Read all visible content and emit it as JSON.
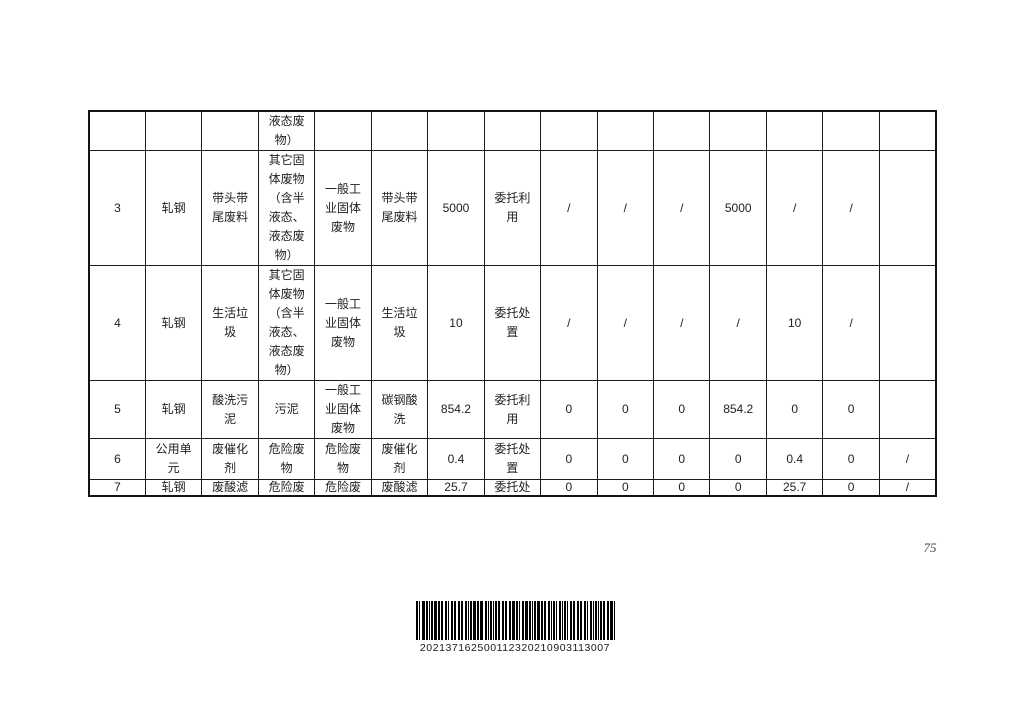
{
  "page": {
    "number": "75"
  },
  "table": {
    "columns_count": 15,
    "rows": [
      [
        "",
        "",
        "",
        "液态废\n物）",
        "",
        "",
        "",
        "",
        "",
        "",
        "",
        "",
        "",
        "",
        ""
      ],
      [
        "3",
        "轧钢",
        "带头带\n尾废料",
        "其它固\n体废物\n（含半\n液态、\n液态废\n物）",
        "一般工\n业固体\n废物",
        "带头带\n尾废料",
        "5000",
        "委托利\n用",
        "/",
        "/",
        "/",
        "5000",
        "/",
        "/",
        ""
      ],
      [
        "4",
        "轧钢",
        "生活垃\n圾",
        "其它固\n体废物\n（含半\n液态、\n液态废\n物）",
        "一般工\n业固体\n废物",
        "生活垃\n圾",
        "10",
        "委托处\n置",
        "/",
        "/",
        "/",
        "/",
        "10",
        "/",
        ""
      ],
      [
        "5",
        "轧钢",
        "酸洗污\n泥",
        "污泥",
        "一般工\n业固体\n废物",
        "碳钢酸\n洗",
        "854.2",
        "委托利\n用",
        "0",
        "0",
        "0",
        "854.2",
        "0",
        "0",
        ""
      ],
      [
        "6",
        "公用单\n元",
        "废催化\n剂",
        "危险废\n物",
        "危险废\n物",
        "废催化\n剂",
        "0.4",
        "委托处\n置",
        "0",
        "0",
        "0",
        "0",
        "0.4",
        "0",
        "/"
      ],
      [
        "7",
        "轧钢",
        "废酸滤",
        "危险废",
        "危险废",
        "废酸滤",
        "25.7",
        "委托处",
        "0",
        "0",
        "0",
        "0",
        "25.7",
        "0",
        "/"
      ]
    ]
  },
  "barcode": {
    "number": "202137162500112320210903113007"
  }
}
